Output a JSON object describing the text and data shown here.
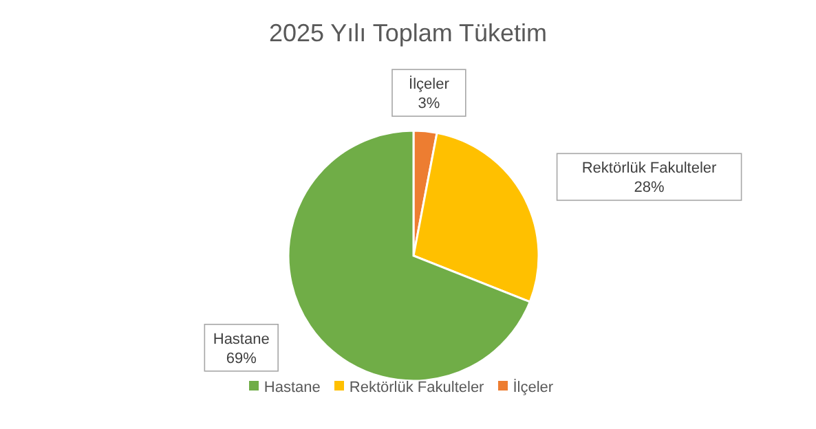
{
  "chart_data": {
    "type": "pie",
    "title": "2025 Yılı Toplam Tüketim",
    "categories": [
      "İlçeler",
      "Rektörlük Fakulteler",
      "Hastane"
    ],
    "values": [
      3,
      28,
      69
    ],
    "colors": [
      "#ed7d31",
      "#ffc000",
      "#70ad47"
    ],
    "value_labels": [
      "3%",
      "28%",
      "69%"
    ],
    "legend": "bottom"
  }
}
